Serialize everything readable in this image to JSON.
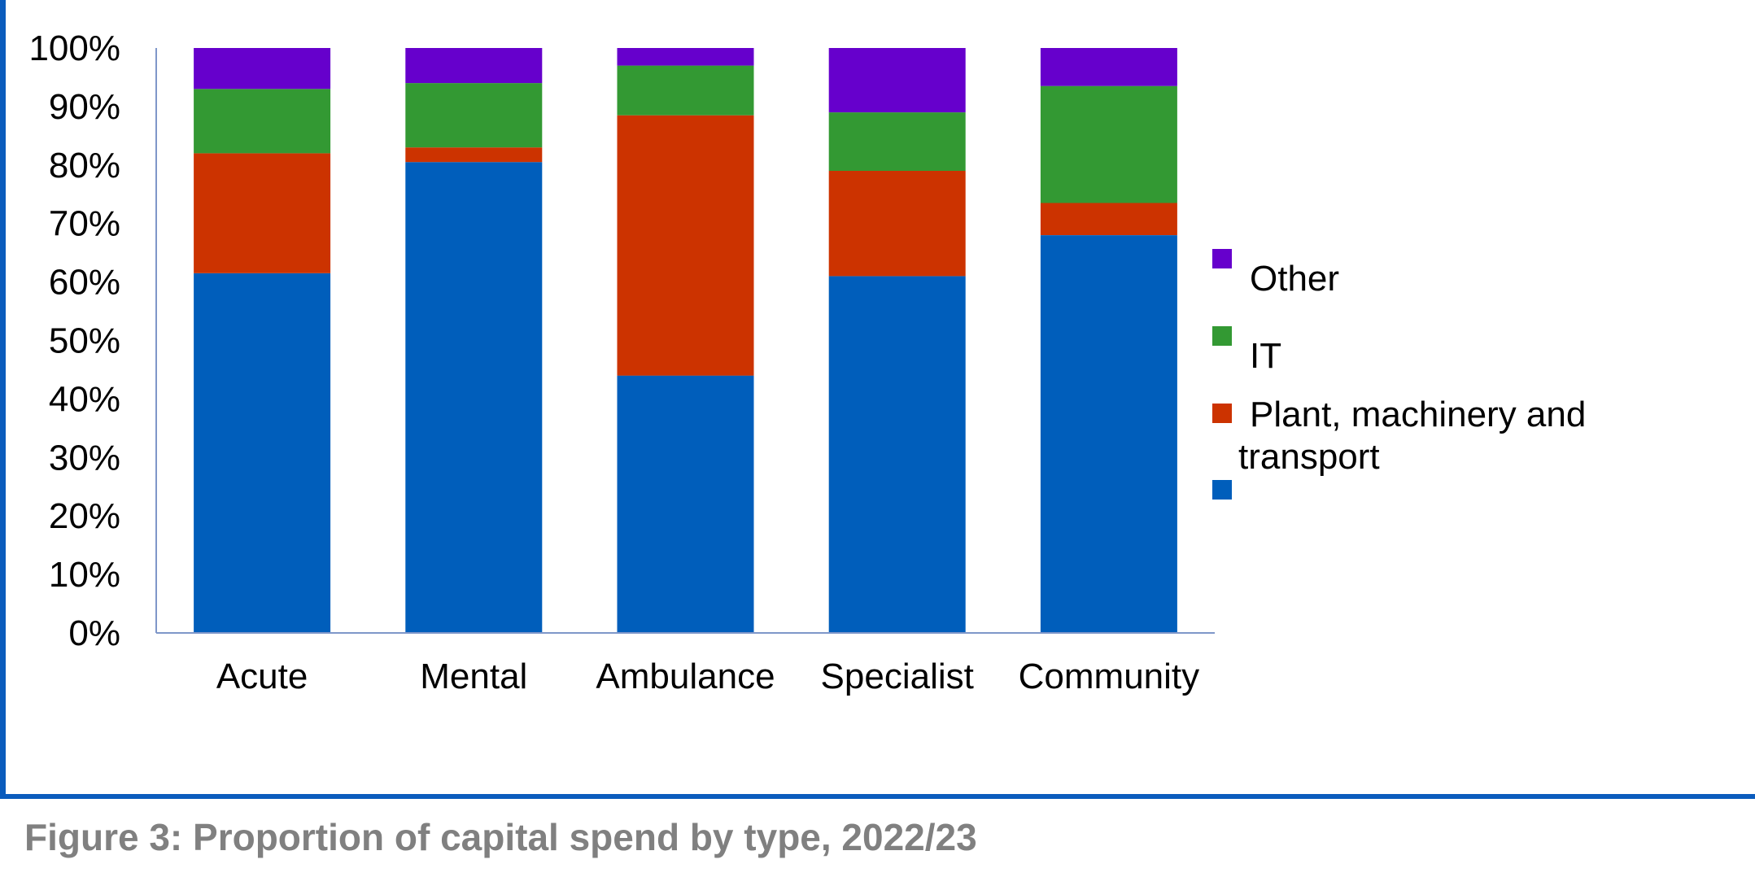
{
  "caption": "Figure 3: Proportion of capital spend by type, 2022/23",
  "chart_data": {
    "type": "bar",
    "stacked": true,
    "categories": [
      "Acute",
      "Mental",
      "Ambulance",
      "Specialist",
      "Community"
    ],
    "series": [
      {
        "name": "",
        "color": "#005ebb",
        "values": [
          61.5,
          80.5,
          44,
          61,
          68
        ]
      },
      {
        "name": "Plant, machinery and transport",
        "color": "#cc3300",
        "values": [
          20.5,
          2.5,
          44.5,
          18,
          5.5
        ]
      },
      {
        "name": "IT",
        "color": "#339933",
        "values": [
          11,
          11,
          8.5,
          10,
          20
        ]
      },
      {
        "name": "Other",
        "color": "#6600cc",
        "values": [
          7,
          6,
          3,
          11,
          6.5
        ]
      }
    ],
    "y_ticks": [
      "0%",
      "10%",
      "20%",
      "30%",
      "40%",
      "50%",
      "60%",
      "70%",
      "80%",
      "90%",
      "100%"
    ],
    "ylim": [
      0,
      100
    ],
    "grid": false,
    "legend_position": "right",
    "legend_order": [
      "Other",
      "IT",
      "Plant, machinery and transport",
      ""
    ]
  }
}
